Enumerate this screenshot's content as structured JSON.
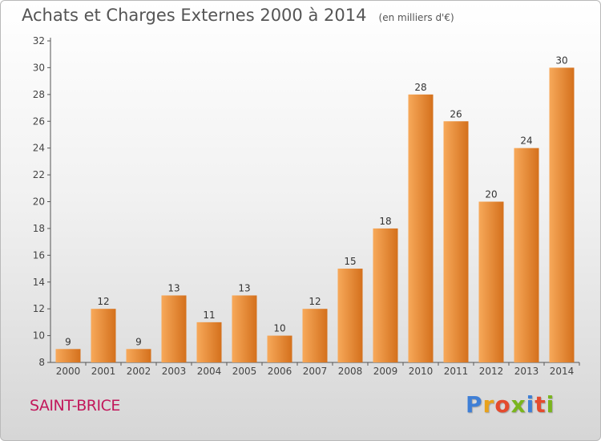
{
  "header": {
    "title": "Achats et Charges Externes 2000 à 2014",
    "unit": "(en milliers d'€)"
  },
  "footer": {
    "commune": "SAINT-BRICE",
    "logo_letters": [
      "P",
      "r",
      "o",
      "x",
      "i",
      "t",
      "i"
    ],
    "logo_colors": [
      "#3f7fd6",
      "#e8a21c",
      "#e44b2e",
      "#7ab51d",
      "#3f7fd6",
      "#e44b2e",
      "#7ab51d"
    ]
  },
  "colors": {
    "bar_light": "#f7a95a",
    "bar_dark": "#d4701c",
    "axis": "#555555",
    "grid": "#cccccc",
    "title": "#555555",
    "commune": "#c2185b"
  },
  "chart_data": {
    "type": "bar",
    "title": "Achats et Charges Externes 2000 à 2014",
    "subtitle": "(en milliers d'€)",
    "categories": [
      "2000",
      "2001",
      "2002",
      "2003",
      "2004",
      "2005",
      "2006",
      "2007",
      "2008",
      "2009",
      "2010",
      "2011",
      "2012",
      "2013",
      "2014"
    ],
    "values": [
      9,
      12,
      9,
      13,
      11,
      13,
      10,
      12,
      15,
      18,
      28,
      26,
      20,
      24,
      30
    ],
    "ylim": [
      8,
      32
    ],
    "yticks": [
      8,
      10,
      12,
      14,
      16,
      18,
      20,
      22,
      24,
      26,
      28,
      30,
      32
    ],
    "grid": false,
    "data_labels": true
  }
}
